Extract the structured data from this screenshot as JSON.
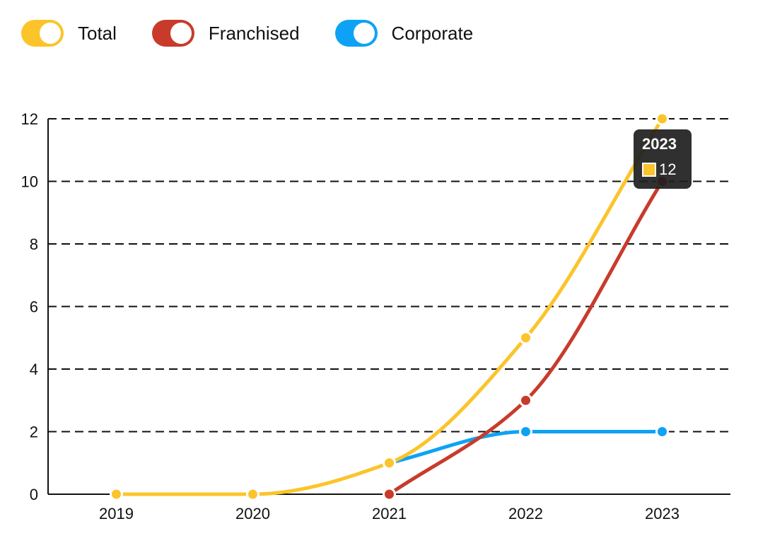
{
  "legend": [
    {
      "label": "Total",
      "color": "#fbc42a"
    },
    {
      "label": "Franchised",
      "color": "#c83b2b"
    },
    {
      "label": "Corporate",
      "color": "#0da2f5"
    }
  ],
  "tooltip": {
    "title": "2023",
    "value": "12",
    "color": "#fbc42a"
  },
  "chart_data": {
    "type": "line",
    "x": [
      "2019",
      "2020",
      "2021",
      "2022",
      "2023"
    ],
    "ylim": [
      0,
      12
    ],
    "yticks": [
      0,
      2,
      4,
      6,
      8,
      10,
      12
    ],
    "grid": true,
    "legend_position": "top-left",
    "series": [
      {
        "name": "Total",
        "color": "#fbc42a",
        "values": [
          0,
          0,
          1,
          5,
          12
        ]
      },
      {
        "name": "Franchised",
        "color": "#c83b2b",
        "values": [
          null,
          null,
          0,
          3,
          10
        ]
      },
      {
        "name": "Corporate",
        "color": "#0da2f5",
        "values": [
          null,
          null,
          1,
          2,
          2
        ]
      }
    ]
  }
}
